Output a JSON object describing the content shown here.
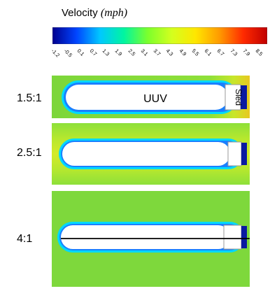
{
  "colorbar": {
    "title_text": "Velocity ",
    "title_unit": "(mph)",
    "ticks": [
      "-1.2",
      "-0.5",
      "0.1",
      "0.7",
      "1.3",
      "1.9",
      "2.5",
      "3.1",
      "3.7",
      "4.3",
      "4.9",
      "5.5",
      "6.1",
      "6.7",
      "7.3",
      "7.9",
      "8.5"
    ],
    "colors": [
      "#00008f",
      "#0044ff",
      "#00c8ff",
      "#00f5a0",
      "#7cff2c",
      "#d4ff1e",
      "#ffe600",
      "#ff9a00",
      "#ff2a00",
      "#c00000"
    ]
  },
  "panels": [
    {
      "ratio": "1.5:1",
      "body_label": "UUV",
      "sled_label": "Sled"
    },
    {
      "ratio": "2.5:1"
    },
    {
      "ratio": "4:1"
    }
  ]
}
